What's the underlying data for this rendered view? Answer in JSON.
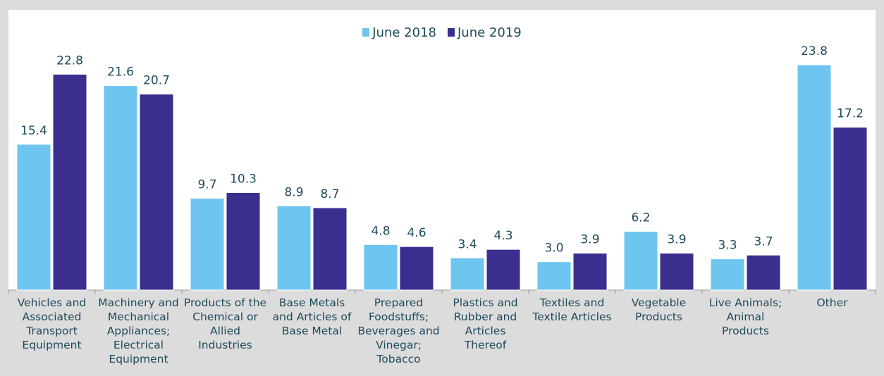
{
  "chart_data": {
    "type": "bar",
    "categories": [
      "Vehicles and Associated Transport Equipment",
      "Machinery and Mechanical Appliances; Electrical Equipment",
      "Products of the Chemical or Allied Industries",
      "Base Metals and Articles of Base Metal",
      "Prepared Foodstuffs; Beverages and Vinegar; Tobacco",
      "Plastics and Rubber and Articles Thereof",
      "Textiles and Textile Articles",
      "Vegetable Products",
      "Live Animals; Animal Products",
      "Other"
    ],
    "series": [
      {
        "name": "June 2018",
        "color": "#6ec6f0",
        "values": [
          15.4,
          21.6,
          9.7,
          8.9,
          4.8,
          3.4,
          3.0,
          6.2,
          3.3,
          23.8
        ],
        "value_labels": [
          "15.4",
          "21.6",
          "9.7",
          "8.9",
          "4.8",
          "3.4",
          "3.0",
          "6.2",
          "3.3",
          "23.8"
        ]
      },
      {
        "name": "June 2019",
        "color": "#3a2e8e",
        "values": [
          22.8,
          20.7,
          10.3,
          8.7,
          4.6,
          4.3,
          3.9,
          3.9,
          3.7,
          17.2
        ],
        "value_labels": [
          "22.8",
          "20.7",
          "10.3",
          "8.7",
          "4.6",
          "4.3",
          "3.9",
          "3.9",
          "3.7",
          "17.2"
        ]
      }
    ],
    "legend": "top"
  }
}
